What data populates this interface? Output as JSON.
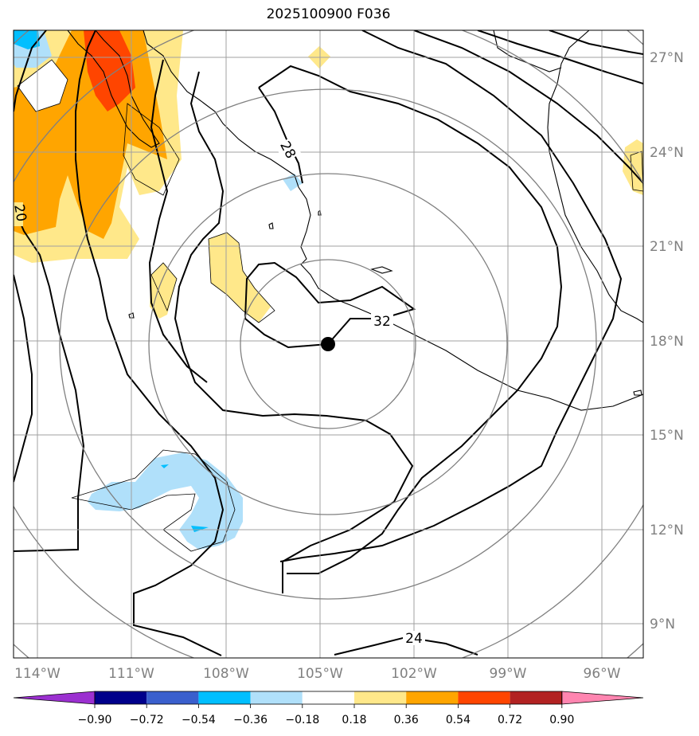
{
  "title": "2025100900 F036",
  "lon_labels": [
    "114°W",
    "111°W",
    "108°W",
    "105°W",
    "102°W",
    "99°W",
    "96°W"
  ],
  "lat_labels": [
    "27°N",
    "24°N",
    "21°N",
    "18°N",
    "15°N",
    "12°N",
    "9°N"
  ],
  "contour_labels": [
    "28",
    "32",
    "24",
    "20"
  ],
  "colorbar": {
    "tick_labels": [
      "−0.90",
      "−0.72",
      "−0.54",
      "−0.36",
      "−0.18",
      "0.18",
      "0.36",
      "0.54",
      "0.72",
      "0.90"
    ],
    "colors": [
      "#9b30d0",
      "#00008b",
      "#3a5fcd",
      "#00bfff",
      "#b0e0fa",
      "#ffffff",
      "#ffe88a",
      "#ffa500",
      "#ff4500",
      "#b22222",
      "#ff85b0"
    ]
  },
  "map": {
    "extent": {
      "lon_min": -115,
      "lon_max": -95,
      "lat_min": 8,
      "lat_max": 28
    },
    "center": {
      "lon": -104.7,
      "lat": 17.9
    },
    "range_rings": 5
  }
}
